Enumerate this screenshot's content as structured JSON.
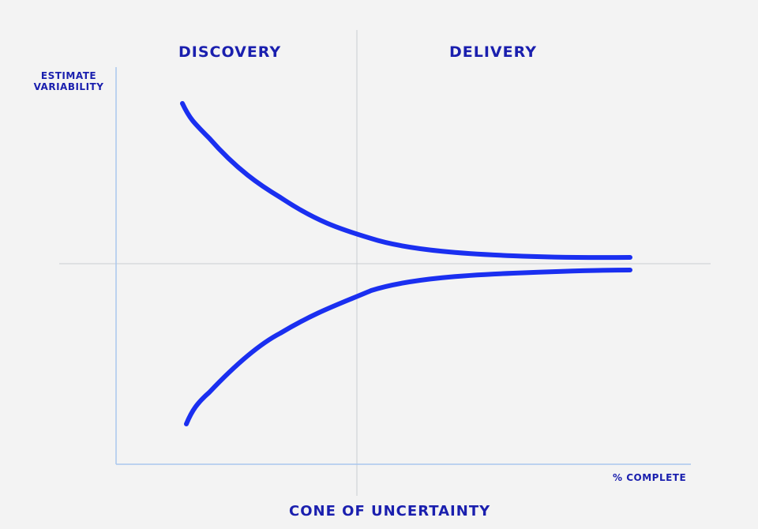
{
  "diagram": {
    "phase_left": "DISCOVERY",
    "phase_right": "DELIVERY",
    "y_axis_label_line1": "ESTIMATE",
    "y_axis_label_line2": "VARIABILITY",
    "x_axis_label": "% COMPLETE",
    "title": "CONE OF UNCERTAINTY"
  },
  "colors": {
    "ink": "#1a1fae",
    "curve": "#1a2ff0",
    "axis": "#a9c7ee",
    "guide": "#c8ccd2",
    "paper": "#f3f3f3"
  }
}
